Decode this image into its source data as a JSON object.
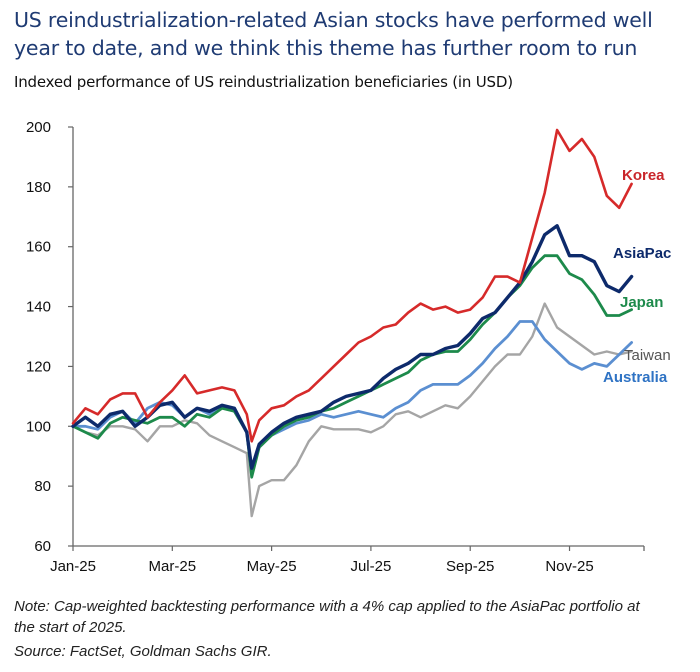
{
  "header": {
    "title": "US reindustrialization-related Asian stocks have performed well year to date, and we think this theme has further room to run",
    "subtitle": "Indexed performance of US reindustrialization beneficiaries (in USD)"
  },
  "footer": {
    "note": "Note: Cap-weighted backtesting performance with a 4% cap applied to the AsiaPac portfolio at the start of 2025.",
    "source": "Source: FactSet, Goldman Sachs GIR."
  },
  "chart_data": {
    "type": "line",
    "title": "Indexed performance of US reindustrialization beneficiaries (in USD)",
    "xlabel": "",
    "ylabel": "",
    "ylim": [
      60,
      200
    ],
    "yticks": [
      60,
      80,
      100,
      120,
      140,
      160,
      180,
      200
    ],
    "xticks": [
      "Jan-25",
      "Mar-25",
      "May-25",
      "Jul-25",
      "Sep-25",
      "Nov-25"
    ],
    "xrange_months": [
      0,
      11.5
    ],
    "grid": false,
    "legend": "inline labels at right end of lines",
    "x_unit": "months since Jan-25 (weekly approx.)",
    "x": [
      0,
      0.25,
      0.5,
      0.75,
      1,
      1.25,
      1.5,
      1.75,
      2,
      2.25,
      2.5,
      2.75,
      3,
      3.25,
      3.5,
      3.6,
      3.75,
      4,
      4.25,
      4.5,
      4.75,
      5,
      5.25,
      5.5,
      5.75,
      6,
      6.25,
      6.5,
      6.75,
      7,
      7.25,
      7.5,
      7.75,
      8,
      8.25,
      8.5,
      8.75,
      9,
      9.25,
      9.5,
      9.75,
      10,
      10.25,
      10.5,
      10.75,
      11,
      11.25
    ],
    "series": [
      {
        "name": "Korea",
        "color": "#d62a2a",
        "values": [
          101,
          106,
          104,
          109,
          111,
          111,
          103,
          108,
          112,
          117,
          111,
          112,
          113,
          112,
          104,
          95,
          102,
          106,
          107,
          110,
          112,
          116,
          120,
          124,
          128,
          130,
          133,
          134,
          138,
          141,
          139,
          140,
          138,
          139,
          143,
          150,
          150,
          148,
          163,
          178,
          199,
          192,
          196,
          190,
          177,
          173,
          181
        ]
      },
      {
        "name": "AsiaPac",
        "color": "#0d2a6b",
        "values": [
          100,
          103,
          100,
          104,
          105,
          100,
          103,
          107,
          108,
          103,
          106,
          105,
          107,
          106,
          98,
          86,
          94,
          98,
          101,
          103,
          104,
          105,
          108,
          110,
          111,
          112,
          116,
          119,
          121,
          124,
          124,
          126,
          127,
          131,
          136,
          138,
          143,
          148,
          155,
          164,
          167,
          157,
          157,
          155,
          147,
          145,
          150
        ]
      },
      {
        "name": "Japan",
        "color": "#1d8a4b",
        "values": [
          100,
          98,
          96,
          101,
          103,
          102,
          101,
          103,
          103,
          100,
          104,
          103,
          106,
          105,
          98,
          83,
          93,
          97,
          100,
          102,
          103,
          105,
          106,
          108,
          110,
          112,
          114,
          116,
          118,
          122,
          124,
          125,
          125,
          129,
          134,
          138,
          143,
          147,
          153,
          157,
          157,
          151,
          149,
          144,
          137,
          137,
          139
        ]
      },
      {
        "name": "Taiwan",
        "color": "#a5a5a5",
        "values": [
          100,
          98,
          97,
          100,
          100,
          99,
          95,
          100,
          100,
          102,
          101,
          97,
          95,
          93,
          91,
          70,
          80,
          82,
          82,
          87,
          95,
          100,
          99,
          99,
          99,
          98,
          100,
          104,
          105,
          103,
          105,
          107,
          106,
          110,
          115,
          120,
          124,
          124,
          130,
          141,
          133,
          130,
          127,
          124,
          125,
          124,
          125
        ]
      },
      {
        "name": "Australia",
        "color": "#5b8fd1",
        "values": [
          100,
          100,
          99,
          103,
          105,
          101,
          106,
          108,
          107,
          103,
          106,
          104,
          107,
          105,
          98,
          85,
          93,
          97,
          99,
          101,
          102,
          104,
          103,
          104,
          105,
          104,
          103,
          106,
          108,
          112,
          114,
          114,
          114,
          117,
          121,
          126,
          130,
          135,
          135,
          129,
          125,
          121,
          119,
          121,
          120,
          124,
          128
        ]
      }
    ]
  },
  "series_labels": [
    {
      "name": "Korea",
      "text": "Korea"
    },
    {
      "name": "AsiaPac",
      "text": "AsiaPac"
    },
    {
      "name": "Japan",
      "text": "Japan"
    },
    {
      "name": "Taiwan",
      "text": "Taiwan"
    },
    {
      "name": "Australia",
      "text": "Australia"
    }
  ]
}
